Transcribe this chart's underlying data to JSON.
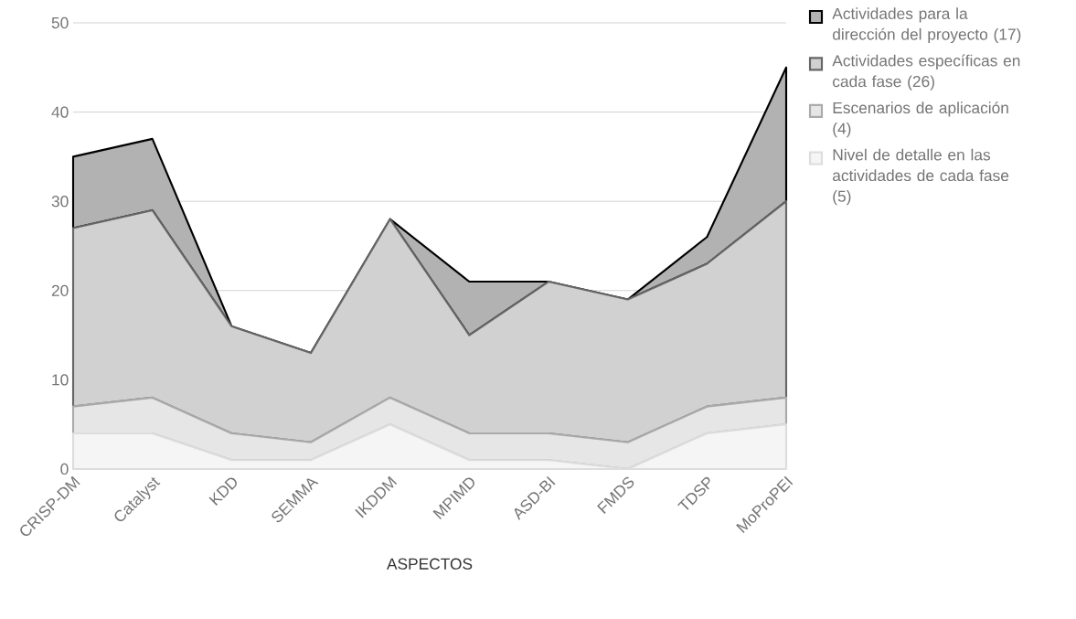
{
  "chart_data": {
    "type": "area",
    "stacked": true,
    "xlabel": "ASPECTOS",
    "categories": [
      "CRISP-DM",
      "Catalyst",
      "KDD",
      "SEMMA",
      "IKDDM",
      "MPIMD",
      "ASD-BI",
      "FMDS",
      "TDSP",
      "MoProPEI"
    ],
    "series": [
      {
        "name": "Nivel de detalle en las actividades de cada fase (5)",
        "color": "#dddddd",
        "values": [
          4,
          4,
          1,
          1,
          5,
          1,
          1,
          0,
          4,
          5
        ]
      },
      {
        "name": "Escenarios de aplicación (4)",
        "color": "#aaaaaa",
        "values": [
          3,
          4,
          3,
          2,
          3,
          3,
          3,
          3,
          3,
          3
        ]
      },
      {
        "name": "Actividades específicas en cada fase (26)",
        "color": "#666666",
        "values": [
          20,
          21,
          12,
          10,
          20,
          11,
          17,
          16,
          16,
          22
        ]
      },
      {
        "name": "Actividades para la dirección del proyecto (17)",
        "color": "#000000",
        "values": [
          8,
          8,
          0,
          0,
          0,
          6,
          0,
          0,
          3,
          15
        ]
      }
    ],
    "ylim": [
      0,
      50
    ],
    "yticks": [
      0,
      10,
      20,
      30,
      40,
      50
    ],
    "grid": "y",
    "legend": "right"
  }
}
